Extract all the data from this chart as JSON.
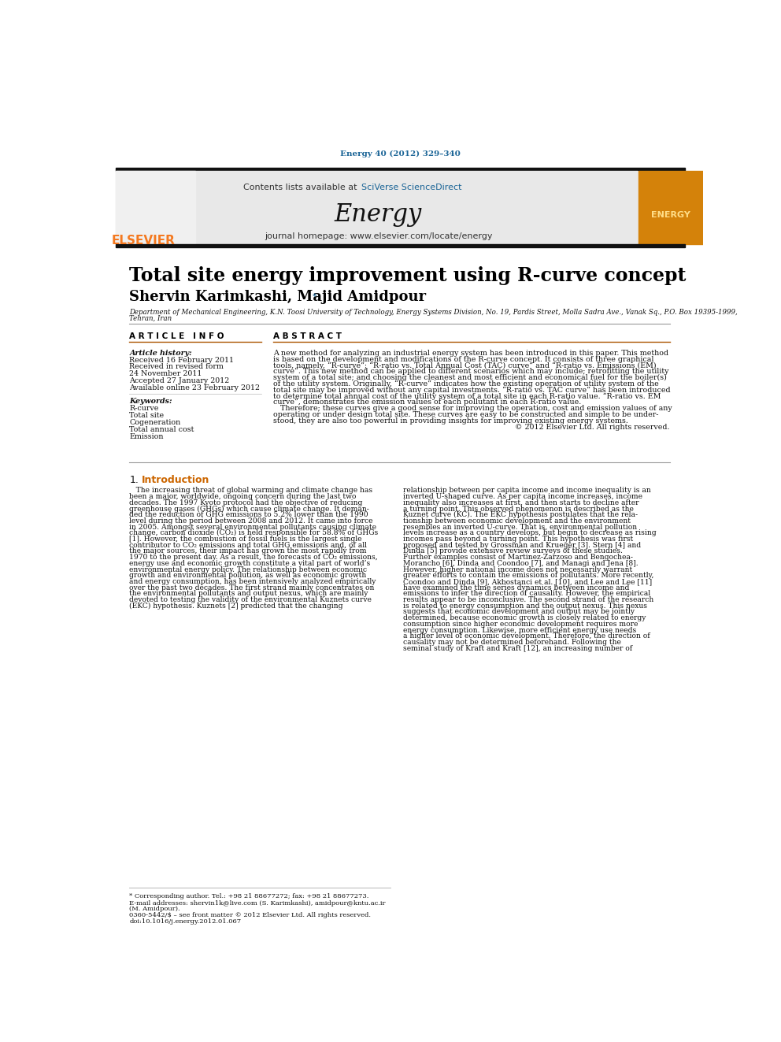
{
  "journal_ref": "Energy 40 (2012) 329–340",
  "header_text": "Contents lists available at SciVerse ScienceDirect",
  "journal_name": "Energy",
  "journal_homepage": "journal homepage: www.elsevier.com/locate/energy",
  "paper_title": "Total site energy improvement using R-curve concept",
  "authors": "Shervin Karimkashi, Majid Amidpour",
  "affiliation": "Department of Mechanical Engineering, K.N. Toosi University of Technology, Energy Systems Division, No. 19, Pardis Street, Molla Sadra Ave., Vanak Sq., P.O. Box 19395-1999,\nTehran, Iran",
  "article_info_title": "ARTICLE INFO",
  "abstract_title": "ABSTRACT",
  "article_history_label": "Article history:",
  "received1": "Received 16 February 2011",
  "received2": "Received in revised form",
  "received2b": "24 November 2011",
  "accepted": "Accepted 27 January 2012",
  "available": "Available online 23 February 2012",
  "keywords_label": "Keywords:",
  "keywords": [
    "R-curve",
    "Total site",
    "Cogeneration",
    "Total annual cost",
    "Emission"
  ],
  "abstract_lines": [
    "A new method for analyzing an industrial energy system has been introduced in this paper. This method",
    "is based on the development and modifications of the R-curve concept. It consists of three graphical",
    "tools, namely, “R-curve”; “R-ratio vs. Total Annual Cost (TAC) curve” and “R-ratio vs. Emissions (EM)",
    "curve”. This new method can be applied to different scenarios which may include; retrofitting the utility",
    "system of a total site; and choosing the cleanest and most efficient and economical fuel for the boiler(s)",
    "of the utility system. Originally, “R-curve” indicates how the existing operation of utility system of the",
    "total site may be improved without any capital investments. “R-ratio vs. TAC curve” has been introduced",
    "to determine total annual cost of the utility system of a total site in each R-ratio value. “R-ratio vs. EM",
    "curve”, demonstrates the emission values of each pollutant in each R-ratio value.",
    "   Therefore; these curves give a good sense for improving the operation, cost and emission values of any",
    "operating or under design total site. These curves are easy to be constructed and simple to be under-",
    "stood, they are also too powerful in providing insights for improving existing energy systems.",
    "© 2012 Elsevier Ltd. All rights reserved."
  ],
  "intro_col1_lines": [
    "   The increasing threat of global warming and climate change has",
    "been a major, worldwide, ongoing concern during the last two",
    "decades. The 1997 Kyoto protocol had the objective of reducing",
    "greenhouse gases (GHGs) which cause climate change. It deman-",
    "ded the reduction of GHG emissions to 5.2% lower than the 1990",
    "level during the period between 2008 and 2012. It came into force",
    "in 2005. Amongst several environmental pollutants causing climate",
    "change, carbon dioxide (CO₂) is held responsible for 58.8% of GHGs",
    "[1]. However, the combustion of fossil fuels is the largest single",
    "contributor to CO₂ emissions and total GHG emissions and, of all",
    "the major sources, their impact has grown the most rapidly from",
    "1970 to the present day. As a result, the forecasts of CO₂ emissions,",
    "energy use and economic growth constitute a vital part of world’s",
    "environmental energy policy. The relationship between economic",
    "growth and environmental pollution, as well as economic growth",
    "and energy consumption, has been intensively analyzed empirically",
    "over the past two decades. The first strand mainly concentrates on",
    "the environmental pollutants and output nexus, which are mainly",
    "devoted to testing the validity of the environmental Kuznets curve",
    "(EKC) hypothesis. Kuznets [2] predicted that the changing"
  ],
  "intro_col2_lines": [
    "relationship between per capita income and income inequality is an",
    "inverted U-shaped curve. As per capita income increases, income",
    "inequality also increases at first, and then starts to decline after",
    "a turning point. This observed phenomenon is described as the",
    "Kuznet curve (KC). The EKC hypothesis postulates that the rela-",
    "tionship between economic development and the environment",
    "resembles an inverted U-curve. That is, environmental pollution",
    "levels increase as a country develops, but begin to decrease as rising",
    "incomes pass beyond a turning point. This hypothesis was first",
    "proposed and tested by Grossman and Krueger [3]. Stern [4] and",
    "Dinda [5] provide extensive review surveys of these studies.",
    "Further examples consist of Martinez-Zarzoso and Bengochea-",
    "Morancho [6], Dinda and Coondoo [7], and Managi and Jena [8].",
    "However, higher national income does not necessarily warrant",
    "greater efforts to contain the emissions of pollutants. More recently,",
    "Coondoo and Dinda [9], Akbostanci et al. [10], and Lee and Lee [11]",
    "have examined the time series dynamics between income and",
    "emissions to infer the direction of causality. However, the empirical",
    "results appear to be inconclusive. The second strand of the research",
    "is related to energy consumption and the output nexus. This nexus",
    "suggests that economic development and output may be jointly",
    "determined, because economic growth is closely related to energy",
    "consumption since higher economic development requires more",
    "energy consumption. Likewise, more efficient energy use needs",
    "a higher level of economic development. Therefore, the direction of",
    "causality may not be determined beforehand. Following the",
    "seminal study of Kraft and Kraft [12], an increasing number of"
  ],
  "footnote_star": "* Corresponding author. Tel.: +98 21 88677272; fax: +98 21 88677273.",
  "footnote_email": "E-mail addresses: shervin1k@live.com (S. Karimkashi), amidpour@kntu.ac.ir",
  "footnote_email2": "(M. Amidpour).",
  "footnote_issn": "0360-5442/$ – see front matter © 2012 Elsevier Ltd. All rights reserved.",
  "footnote_doi": "doi:10.1016/j.energy.2012.01.067",
  "background_color": "#ffffff",
  "header_bg": "#e8e8e8",
  "elsevier_orange": "#f47920",
  "link_blue": "#1a6496",
  "title_color": "#000000",
  "bar_color": "#1a1a1a"
}
